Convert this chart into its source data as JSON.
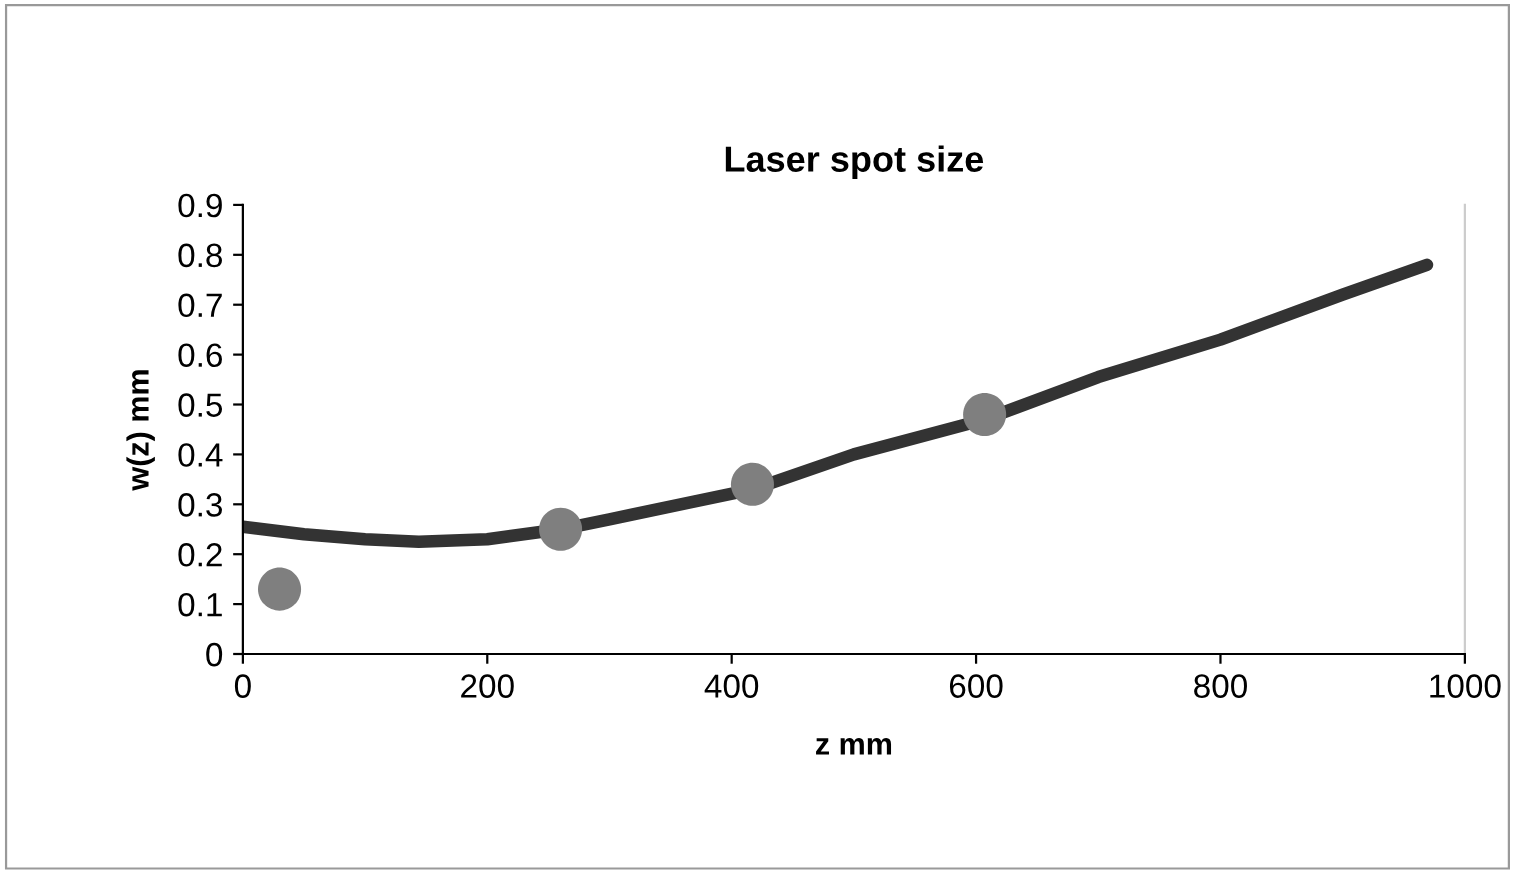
{
  "chart_data": {
    "type": "line",
    "title": "Laser spot size",
    "xlabel": "z mm",
    "ylabel": "w(z) mm",
    "xlim": [
      0,
      1000
    ],
    "xticks": [
      0,
      200,
      400,
      600,
      800,
      1000
    ],
    "ylim": [
      0,
      0.9
    ],
    "yticks": [
      0,
      0.1,
      0.2,
      0.3,
      0.4,
      0.5,
      0.6,
      0.7,
      0.8,
      0.9
    ],
    "grid": false,
    "legend": false,
    "series": [
      {
        "color": "#333333",
        "marker": "none",
        "x": [
          0,
          50,
          100,
          144,
          200,
          260,
          300,
          417,
          500,
          607,
          700,
          800,
          900,
          969
        ],
        "values": [
          0.255,
          0.24,
          0.23,
          0.225,
          0.23,
          0.25,
          0.27,
          0.33,
          0.4,
          0.47,
          0.555,
          0.63,
          0.72,
          0.78
        ]
      },
      {
        "type": "scatter",
        "color": "#7f7f7f",
        "marker": "circle",
        "x": [
          30,
          260,
          417,
          607
        ],
        "values": [
          0.13,
          0.25,
          0.34,
          0.48
        ]
      }
    ]
  }
}
